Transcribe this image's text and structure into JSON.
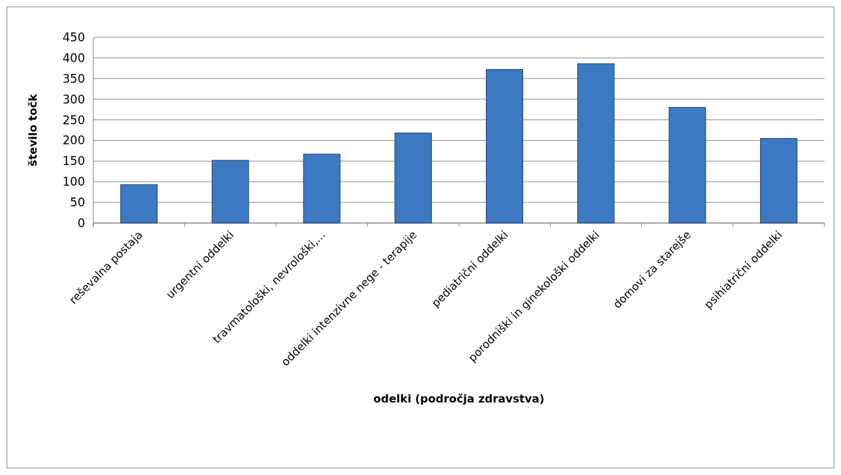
{
  "chart_data": {
    "type": "bar",
    "xlabel": "odelki (področja zdravstva)",
    "ylabel": "število točk",
    "categories": [
      "reševalna postaja",
      "urgentni oddelki",
      "travmatološki, nevrološki,...",
      "oddelki intenzivne nege - terapije",
      "pediatrični oddelki",
      "porodniški in ginekološki oddelki",
      "domovi za starejše",
      "psihiatrični oddelki"
    ],
    "values": [
      93,
      152,
      167,
      218,
      372,
      386,
      280,
      205
    ],
    "color": "#3d78c2",
    "ylim": [
      0,
      450
    ],
    "yticks": [
      0,
      50,
      100,
      150,
      200,
      250,
      300,
      350,
      400,
      450
    ],
    "grid": "y"
  }
}
